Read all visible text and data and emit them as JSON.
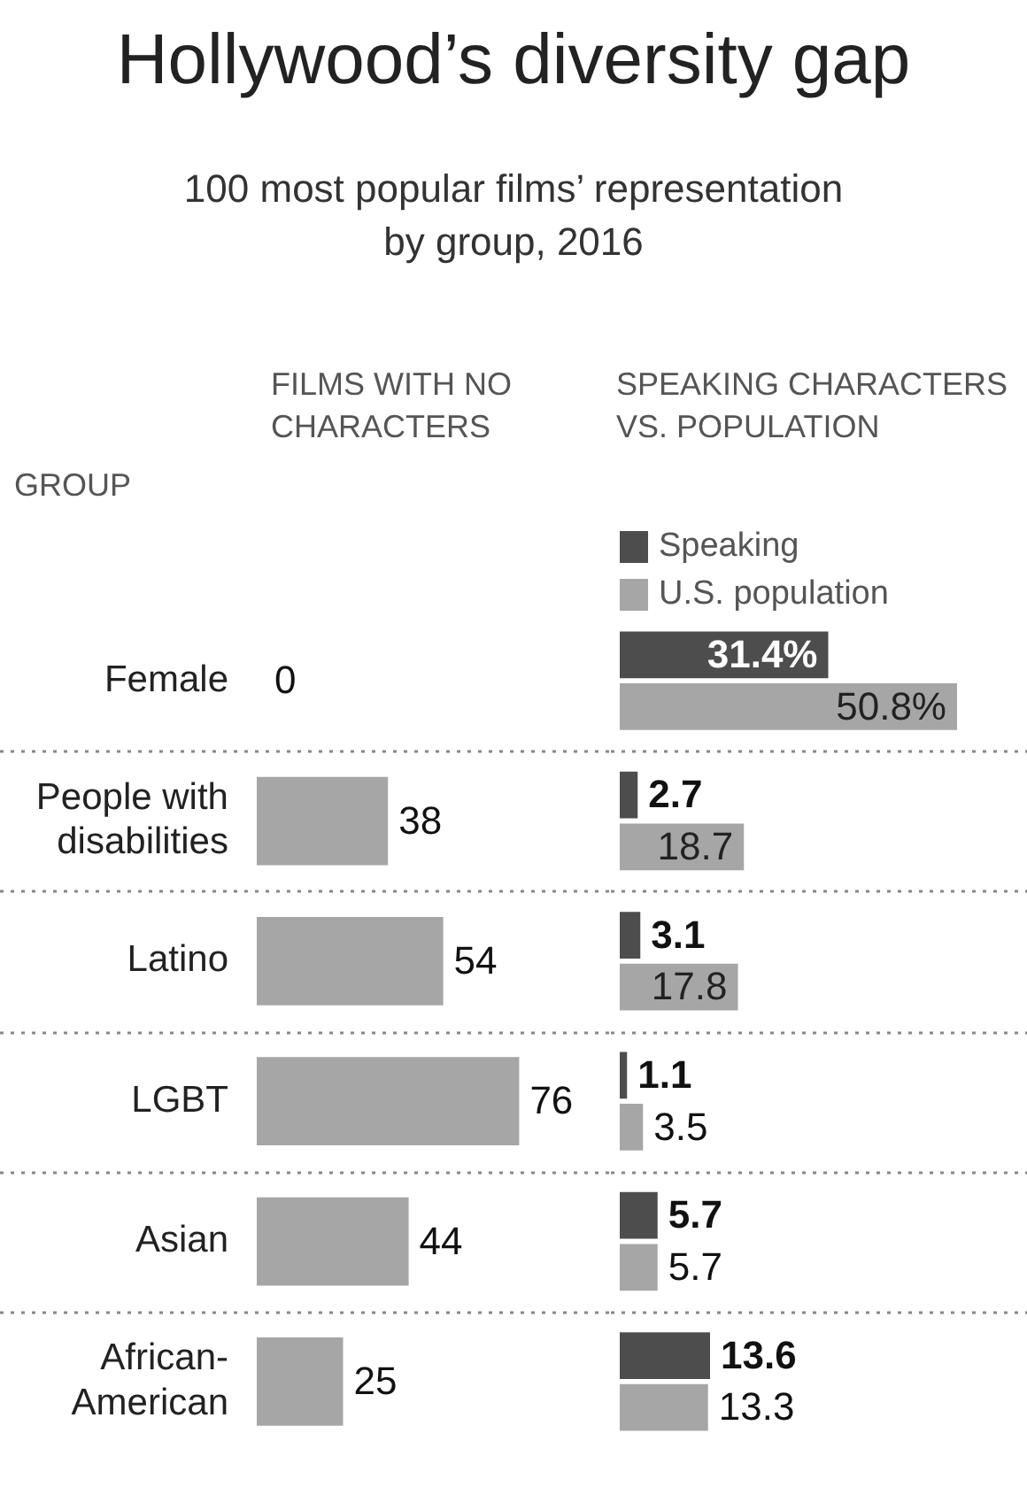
{
  "chart_data": [
    {
      "type": "bar",
      "orientation": "horizontal",
      "title": "Hollywood’s diversity gap",
      "subtitle": "100 most popular films’ representation by group, 2016",
      "ylabel": "GROUP",
      "xlabel": "FILMS WITH NO CHARACTERS",
      "categories": [
        "Female",
        "People with disabilities",
        "Latino",
        "LGBT",
        "Asian",
        "African-American"
      ],
      "values": [
        0,
        38,
        54,
        76,
        44,
        25
      ],
      "color": "#a6a6a6",
      "data_labels": true,
      "tick_labels": "y",
      "grid": "y"
    },
    {
      "type": "bar",
      "orientation": "horizontal",
      "xlabel": "SPEAKING CHARACTERS VS. POPULATION",
      "categories": [
        null,
        null,
        null,
        null,
        null,
        null
      ],
      "series": [
        {
          "name": "Speaking",
          "color": "#4d4d4d",
          "values": [
            31.4,
            2.7,
            3.1,
            1.1,
            5.7,
            13.6
          ],
          "value_labels": [
            "31.4%",
            "2.7",
            "3.1",
            "1.1",
            "5.7",
            "13.6"
          ]
        },
        {
          "name": "U.S. population",
          "color": "#a6a6a6",
          "values": [
            50.8,
            18.7,
            17.8,
            3.5,
            5.7,
            13.3
          ],
          "value_labels": [
            "50.8%",
            "18.7",
            "17.8",
            "3.5",
            "5.7",
            "13.3"
          ]
        }
      ],
      "legend": "top left",
      "tick_labels": false,
      "grid": "y"
    }
  ]
}
